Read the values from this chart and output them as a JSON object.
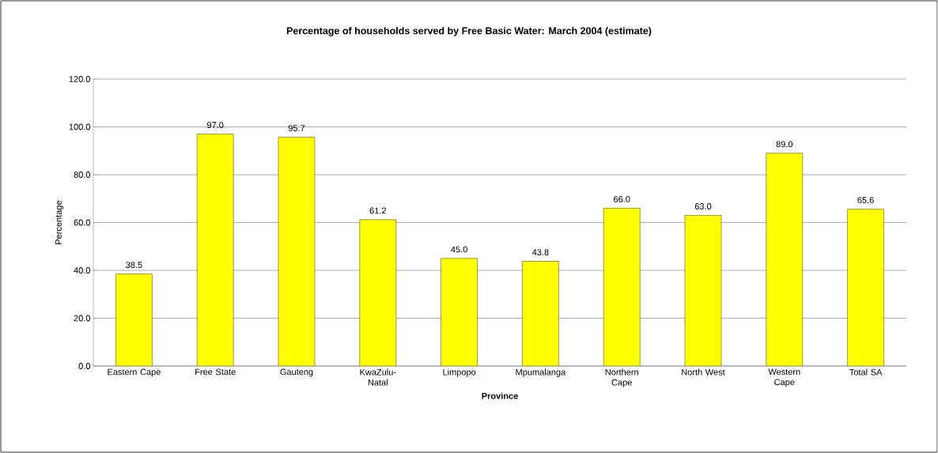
{
  "chart_data": {
    "type": "bar",
    "title": "Percentage of households served by Free Basic Water: March 2004 (estimate)",
    "xlabel": "Province",
    "ylabel": "Percentage",
    "categories": [
      "Eastern Cape",
      "Free State",
      "Gauteng",
      "KwaZulu-Natal",
      "Limpopo",
      "Mpumalanga",
      "Northern Cape",
      "North West",
      "Western Cape",
      "Total SA"
    ],
    "values": [
      38.5,
      97.0,
      95.7,
      61.2,
      45.0,
      43.8,
      66.0,
      63.0,
      89.0,
      65.6
    ],
    "value_labels": [
      "38.5",
      "97.0",
      "95.7",
      "61.2",
      "45.0",
      "43.8",
      "66.0",
      "63.0",
      "89.0",
      "65.6"
    ],
    "color": "#ffff00",
    "ylim": [
      0,
      120
    ],
    "yticks": [
      {
        "value": 0,
        "label": "0.0"
      },
      {
        "value": 20,
        "label": "20.0"
      },
      {
        "value": 40,
        "label": "40.0"
      },
      {
        "value": 60,
        "label": "60.0"
      },
      {
        "value": 80,
        "label": "80.0"
      },
      {
        "value": 100,
        "label": "100.0"
      },
      {
        "value": 120,
        "label": "120.0"
      }
    ],
    "grid": "y"
  }
}
